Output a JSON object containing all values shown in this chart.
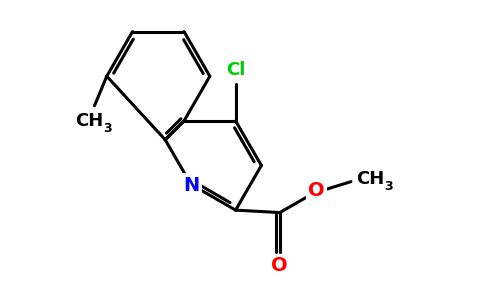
{
  "bg_color": "#ffffff",
  "bond_color": "#000000",
  "N_color": "#0000ff",
  "O_color": "#ff0000",
  "Cl_color": "#00cc00",
  "bond_width": 2.2,
  "figsize": [
    4.84,
    3.0
  ],
  "dpi": 100,
  "xlim": [
    0,
    9.68
  ],
  "ylim": [
    0,
    6.0
  ]
}
